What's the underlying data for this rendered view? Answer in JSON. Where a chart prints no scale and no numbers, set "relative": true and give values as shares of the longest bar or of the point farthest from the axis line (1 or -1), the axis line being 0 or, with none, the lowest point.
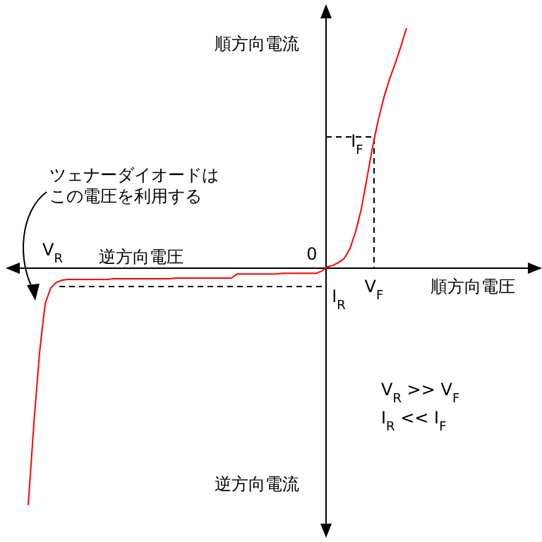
{
  "chart_data": {
    "type": "line",
    "relative": true,
    "xlabel": "順方向電圧",
    "ylabel": "順方向電流",
    "categories": [
      null,
      null,
      null,
      null,
      null,
      null,
      null,
      null,
      null,
      null,
      null,
      null,
      null,
      null,
      null,
      null,
      null,
      null,
      null,
      null,
      null,
      null,
      null,
      null,
      null,
      null,
      null,
      null,
      null,
      null,
      null,
      null,
      null,
      null,
      null,
      null,
      null,
      null,
      null,
      null,
      null,
      null,
      null,
      null,
      null,
      null,
      null,
      null,
      null,
      null,
      null,
      null,
      null,
      null,
      null,
      null,
      null,
      null,
      null,
      null,
      null,
      null,
      null,
      null,
      null,
      null,
      null,
      null
    ],
    "series": [
      {
        "color": "#ff0000",
        "values": [
          -0.988,
          -0.647,
          -0.353,
          -0.147,
          -0.082,
          -0.059,
          -0.05,
          -0.047,
          -0.047,
          -0.047,
          -0.047,
          -0.047,
          -0.047,
          -0.047,
          -0.047,
          -0.044,
          -0.044,
          -0.044,
          -0.044,
          -0.044,
          -0.044,
          -0.044,
          -0.044,
          -0.044,
          -0.044,
          -0.044,
          -0.041,
          -0.041,
          -0.041,
          -0.041,
          -0.041,
          -0.041,
          -0.041,
          -0.041,
          -0.041,
          -0.041,
          -0.041,
          -0.024,
          -0.024,
          -0.024,
          -0.024,
          -0.024,
          -0.024,
          -0.024,
          -0.024,
          -0.021,
          -0.021,
          -0.021,
          -0.021,
          -0.021,
          -0.021,
          -0.021,
          -0.012,
          0.006,
          0.012,
          0.024,
          0.041,
          0.082,
          0.153,
          0.247,
          0.376,
          0.506,
          0.618,
          0.712,
          0.788,
          0.853,
          0.924,
          1.0
        ]
      }
    ],
    "annotations": [
      "ツェナーダイオードは",
      "この電圧を利用する",
      "V$_{R}$",
      "逆方向電圧",
      "0",
      "I$_{F}$",
      "V$_{F}$",
      "I$_{R}$",
      "逆方向電流",
      "V$_{R}$ >> V$_{F}$",
      "I$_{R}$ << I$_{F}$"
    ]
  }
}
